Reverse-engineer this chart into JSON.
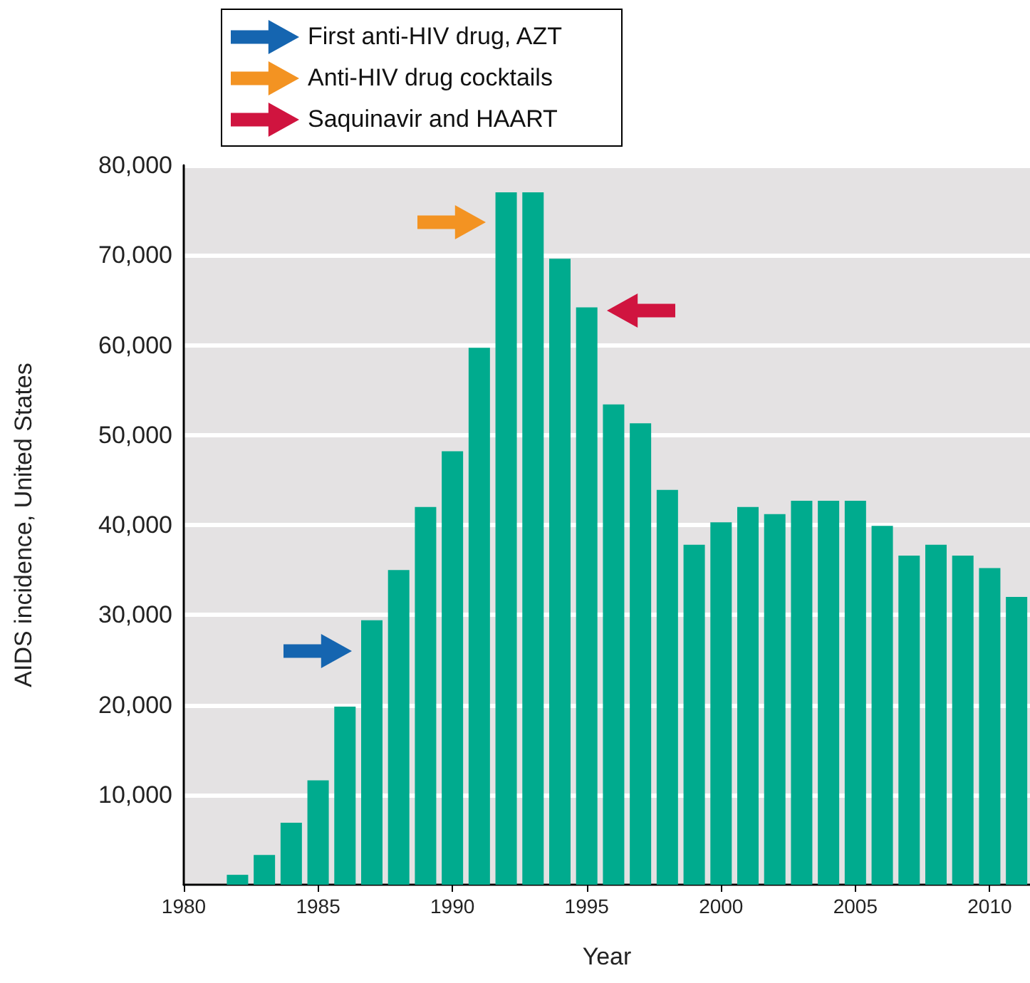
{
  "chart_data": {
    "type": "bar",
    "xlabel": "Year",
    "ylabel": "AIDS incidence, United States",
    "x": [
      1982,
      1983,
      1984,
      1985,
      1986,
      1987,
      1988,
      1989,
      1990,
      1991,
      1992,
      1993,
      1994,
      1995,
      1996,
      1997,
      1998,
      1999,
      2000,
      2001,
      2002,
      2003,
      2004,
      2005,
      2006,
      2007,
      2008,
      2009,
      2010,
      2011
    ],
    "series": [
      {
        "color": "#00ab8e",
        "values": [
          1100,
          3300,
          6900,
          11600,
          19800,
          29400,
          35000,
          42000,
          48200,
          59700,
          77000,
          77000,
          69600,
          64200,
          53400,
          51300,
          43900,
          37800,
          40300,
          42000,
          41200,
          42700,
          42700,
          42700,
          39900,
          36600,
          37800,
          36600,
          35200,
          32000
        ]
      }
    ],
    "xlim": [
      1980,
      2011.5
    ],
    "xticks": [
      1980,
      1985,
      1990,
      1995,
      2000,
      2005,
      2010
    ],
    "ylim": [
      0,
      80000
    ],
    "yticks": [
      {
        "value": 0,
        "label": null
      },
      {
        "value": 10000,
        "label": "10,000"
      },
      {
        "value": 20000,
        "label": "20,000"
      },
      {
        "value": 30000,
        "label": "30,000"
      },
      {
        "value": 40000,
        "label": "40,000"
      },
      {
        "value": 50000,
        "label": "50,000"
      },
      {
        "value": 60000,
        "label": "60,000"
      },
      {
        "value": 70000,
        "label": "70,000"
      },
      {
        "value": 80000,
        "label": "80,000"
      }
    ],
    "grid": "y",
    "annotations": [
      "First anti-HIV drug, AZT",
      "Anti-HIV drug cocktails",
      "Saquinavir and HAART"
    ]
  }
}
